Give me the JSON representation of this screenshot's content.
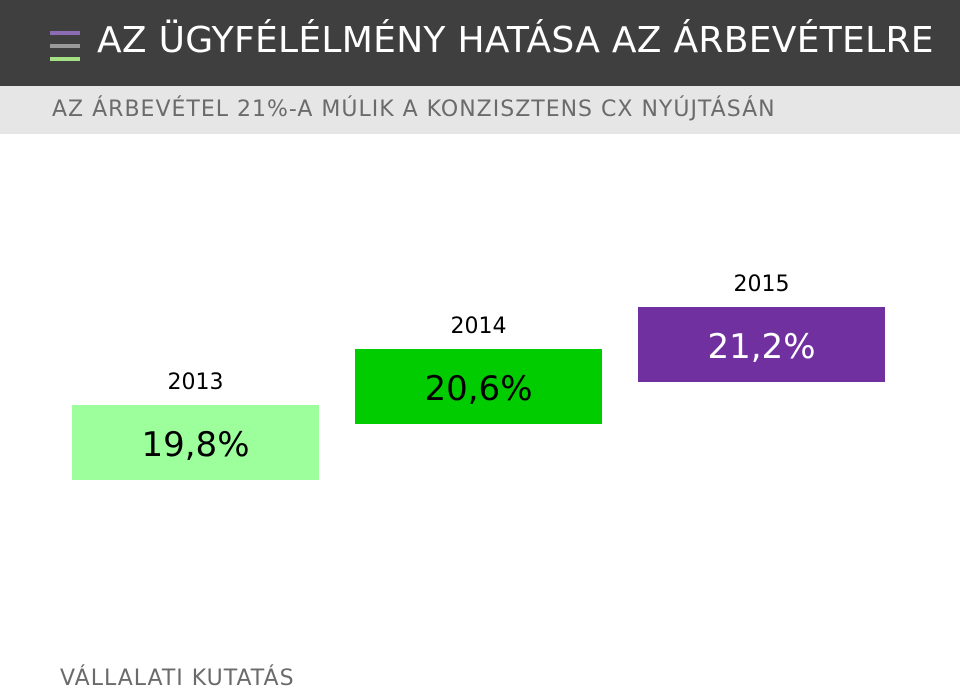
{
  "header": {
    "title": "AZ ÜGYFÉLÉLMÉNY HATÁSA AZ ÁRBEVÉTELRE",
    "logo_colors": [
      "#8b6bb1",
      "#9a9a9a",
      "#a5e085"
    ]
  },
  "subheader": {
    "subtitle": "AZ ÁRBEVÉTEL 21%-A MÚLIK A KONZISZTENS CX NYÚJTÁSÁN"
  },
  "chart_data": {
    "type": "bar",
    "title": "",
    "categories": [
      "2013",
      "2014",
      "2015"
    ],
    "values": [
      19.8,
      20.6,
      21.2
    ],
    "labels": [
      "19,8%",
      "20,6%",
      "21,2%"
    ],
    "colors": [
      "#9cff9c",
      "#00cc00",
      "#7030a0"
    ],
    "unit": "%"
  },
  "footer": {
    "source": "VÁLLALATI KUTATÁS"
  }
}
